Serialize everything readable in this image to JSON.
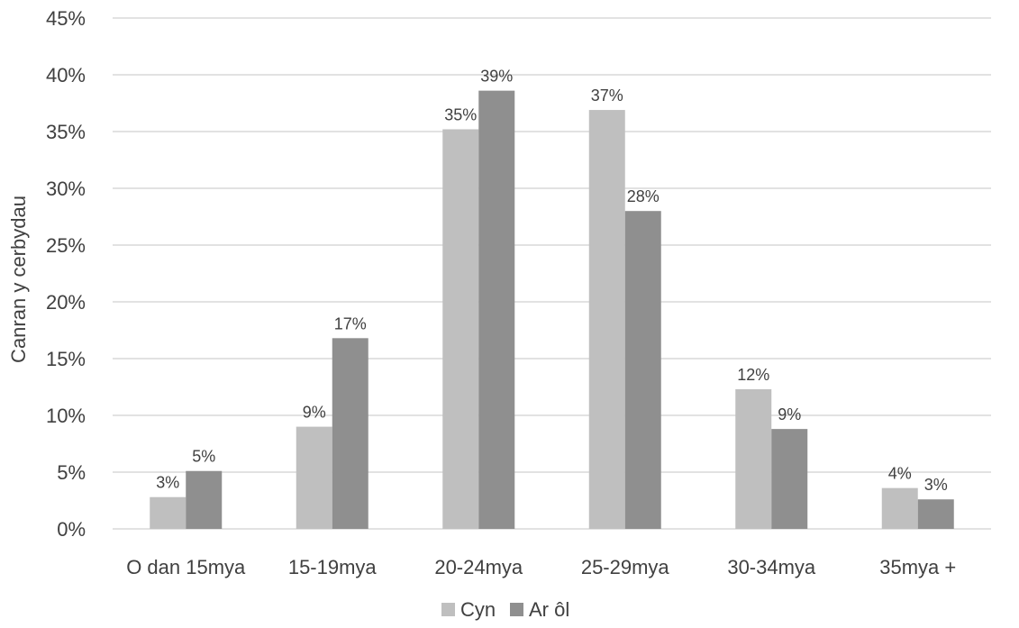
{
  "chart_data": {
    "type": "bar",
    "title": "",
    "xlabel": "",
    "ylabel": "Canran y cerbydau",
    "categories": [
      "O dan 15mya",
      "15-19mya",
      "20-24mya",
      "25-29mya",
      "30-34mya",
      "35mya +"
    ],
    "series": [
      {
        "name": "Cyn",
        "color": "#bfbfbf",
        "values": [
          2.8,
          9.0,
          35.2,
          36.9,
          12.3,
          3.6
        ],
        "labels": [
          "3%",
          "9%",
          "35%",
          "37%",
          "12%",
          "4%"
        ]
      },
      {
        "name": "Ar ôl",
        "color": "#8f8f8f",
        "values": [
          5.1,
          16.8,
          38.6,
          28.0,
          8.8,
          2.6
        ],
        "labels": [
          "5%",
          "17%",
          "39%",
          "28%",
          "9%",
          "3%"
        ]
      }
    ],
    "ylim": [
      0,
      45
    ],
    "yticks": [
      0,
      5,
      10,
      15,
      20,
      25,
      30,
      35,
      40,
      45
    ],
    "ytick_labels": [
      "0%",
      "5%",
      "10%",
      "15%",
      "20%",
      "25%",
      "30%",
      "35%",
      "40%",
      "45%"
    ],
    "grid": true,
    "legend_position": "bottom"
  }
}
